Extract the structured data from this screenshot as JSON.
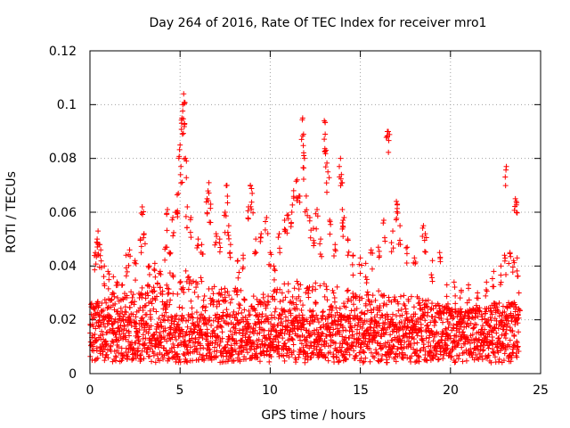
{
  "chart_data": {
    "type": "scatter",
    "title": "Day 264 of 2016, Rate Of TEC Index for receiver mro1",
    "xlabel": "GPS time / hours",
    "ylabel": "ROTI / TECUs",
    "xlim": [
      0,
      25
    ],
    "ylim": [
      0,
      0.12
    ],
    "xticks": [
      0,
      5,
      10,
      15,
      20,
      25
    ],
    "xtick_labels": [
      "0",
      "5",
      "10",
      "15",
      "20",
      "25"
    ],
    "yticks": [
      0,
      0.02,
      0.04,
      0.06,
      0.08,
      0.1,
      0.12
    ],
    "ytick_labels": [
      "0",
      "0.02",
      "0.04",
      "0.06",
      "0.08",
      "0.1",
      "0.12"
    ],
    "grid": true,
    "marker": "+",
    "marker_color": "#ff0000",
    "series": [
      {
        "name": "ROTI",
        "points": [
          [
            0.3,
            0.045
          ],
          [
            0.4,
            0.05
          ],
          [
            0.45,
            0.053
          ],
          [
            0.5,
            0.048
          ],
          [
            0.6,
            0.046
          ],
          [
            0.8,
            0.04
          ],
          [
            1.0,
            0.038
          ],
          [
            1.3,
            0.036
          ],
          [
            1.5,
            0.034
          ],
          [
            1.8,
            0.033
          ],
          [
            2.0,
            0.044
          ],
          [
            2.2,
            0.046
          ],
          [
            2.5,
            0.042
          ],
          [
            2.8,
            0.05
          ],
          [
            2.9,
            0.062
          ],
          [
            3.0,
            0.052
          ],
          [
            3.3,
            0.04
          ],
          [
            3.6,
            0.041
          ],
          [
            3.9,
            0.038
          ],
          [
            4.2,
            0.047
          ],
          [
            4.3,
            0.061
          ],
          [
            4.4,
            0.045
          ],
          [
            4.6,
            0.058
          ],
          [
            4.8,
            0.06
          ],
          [
            4.9,
            0.067
          ],
          [
            5.0,
            0.085
          ],
          [
            5.05,
            0.077
          ],
          [
            5.1,
            0.095
          ],
          [
            5.15,
            0.1
          ],
          [
            5.2,
            0.104
          ],
          [
            5.25,
            0.093
          ],
          [
            5.3,
            0.08
          ],
          [
            5.4,
            0.062
          ],
          [
            5.6,
            0.058
          ],
          [
            6.0,
            0.05
          ],
          [
            6.2,
            0.048
          ],
          [
            6.5,
            0.065
          ],
          [
            6.6,
            0.071
          ],
          [
            6.7,
            0.063
          ],
          [
            7.0,
            0.052
          ],
          [
            7.2,
            0.05
          ],
          [
            7.5,
            0.06
          ],
          [
            7.6,
            0.07
          ],
          [
            7.7,
            0.055
          ],
          [
            7.8,
            0.048
          ],
          [
            8.2,
            0.042
          ],
          [
            8.5,
            0.044
          ],
          [
            8.8,
            0.062
          ],
          [
            8.9,
            0.07
          ],
          [
            9.0,
            0.067
          ],
          [
            9.2,
            0.05
          ],
          [
            9.5,
            0.052
          ],
          [
            9.8,
            0.058
          ],
          [
            10.0,
            0.045
          ],
          [
            10.2,
            0.04
          ],
          [
            10.5,
            0.052
          ],
          [
            10.8,
            0.057
          ],
          [
            11.0,
            0.059
          ],
          [
            11.2,
            0.06
          ],
          [
            11.3,
            0.068
          ],
          [
            11.5,
            0.072
          ],
          [
            11.6,
            0.066
          ],
          [
            11.8,
            0.095
          ],
          [
            11.85,
            0.089
          ],
          [
            11.9,
            0.08
          ],
          [
            12.0,
            0.066
          ],
          [
            12.2,
            0.058
          ],
          [
            12.4,
            0.054
          ],
          [
            12.6,
            0.061
          ],
          [
            12.8,
            0.05
          ],
          [
            13.0,
            0.094
          ],
          [
            13.05,
            0.089
          ],
          [
            13.1,
            0.083
          ],
          [
            13.2,
            0.075
          ],
          [
            13.3,
            0.057
          ],
          [
            13.6,
            0.048
          ],
          [
            13.9,
            0.08
          ],
          [
            13.95,
            0.074
          ],
          [
            14.0,
            0.061
          ],
          [
            14.1,
            0.058
          ],
          [
            14.3,
            0.05
          ],
          [
            14.6,
            0.044
          ],
          [
            15.0,
            0.043
          ],
          [
            15.3,
            0.041
          ],
          [
            15.6,
            0.046
          ],
          [
            16.0,
            0.047
          ],
          [
            16.3,
            0.057
          ],
          [
            16.5,
            0.09
          ],
          [
            16.55,
            0.09
          ],
          [
            16.8,
            0.053
          ],
          [
            17.0,
            0.064
          ],
          [
            17.05,
            0.063
          ],
          [
            17.2,
            0.055
          ],
          [
            17.6,
            0.047
          ],
          [
            18.0,
            0.043
          ],
          [
            18.5,
            0.055
          ],
          [
            18.6,
            0.052
          ],
          [
            19.0,
            0.042
          ],
          [
            19.4,
            0.045
          ],
          [
            19.8,
            0.033
          ],
          [
            20.2,
            0.034
          ],
          [
            20.6,
            0.031
          ],
          [
            21.0,
            0.033
          ],
          [
            21.5,
            0.03
          ],
          [
            22.0,
            0.034
          ],
          [
            22.4,
            0.038
          ],
          [
            22.8,
            0.04
          ],
          [
            23.0,
            0.044
          ],
          [
            23.1,
            0.077
          ],
          [
            23.3,
            0.045
          ],
          [
            23.5,
            0.042
          ],
          [
            23.6,
            0.065
          ],
          [
            23.65,
            0.064
          ],
          [
            23.7,
            0.043
          ],
          [
            23.8,
            0.03
          ]
        ],
        "band_lower": 0.004,
        "band_core": [
          0.006,
          0.022
        ],
        "band_upper_envelope": [
          [
            0.0,
            0.026
          ],
          [
            1.0,
            0.028
          ],
          [
            2.0,
            0.03
          ],
          [
            3.0,
            0.033
          ],
          [
            4.0,
            0.034
          ],
          [
            5.0,
            0.04
          ],
          [
            6.0,
            0.036
          ],
          [
            7.0,
            0.034
          ],
          [
            8.0,
            0.032
          ],
          [
            9.0,
            0.03
          ],
          [
            10.0,
            0.031
          ],
          [
            11.0,
            0.034
          ],
          [
            12.0,
            0.036
          ],
          [
            13.0,
            0.034
          ],
          [
            14.0,
            0.032
          ],
          [
            15.0,
            0.03
          ],
          [
            16.0,
            0.031
          ],
          [
            17.0,
            0.03
          ],
          [
            18.0,
            0.029
          ],
          [
            19.0,
            0.027
          ],
          [
            20.0,
            0.024
          ],
          [
            21.0,
            0.024
          ],
          [
            22.0,
            0.025
          ],
          [
            23.0,
            0.028
          ],
          [
            23.8,
            0.026
          ]
        ]
      }
    ]
  }
}
